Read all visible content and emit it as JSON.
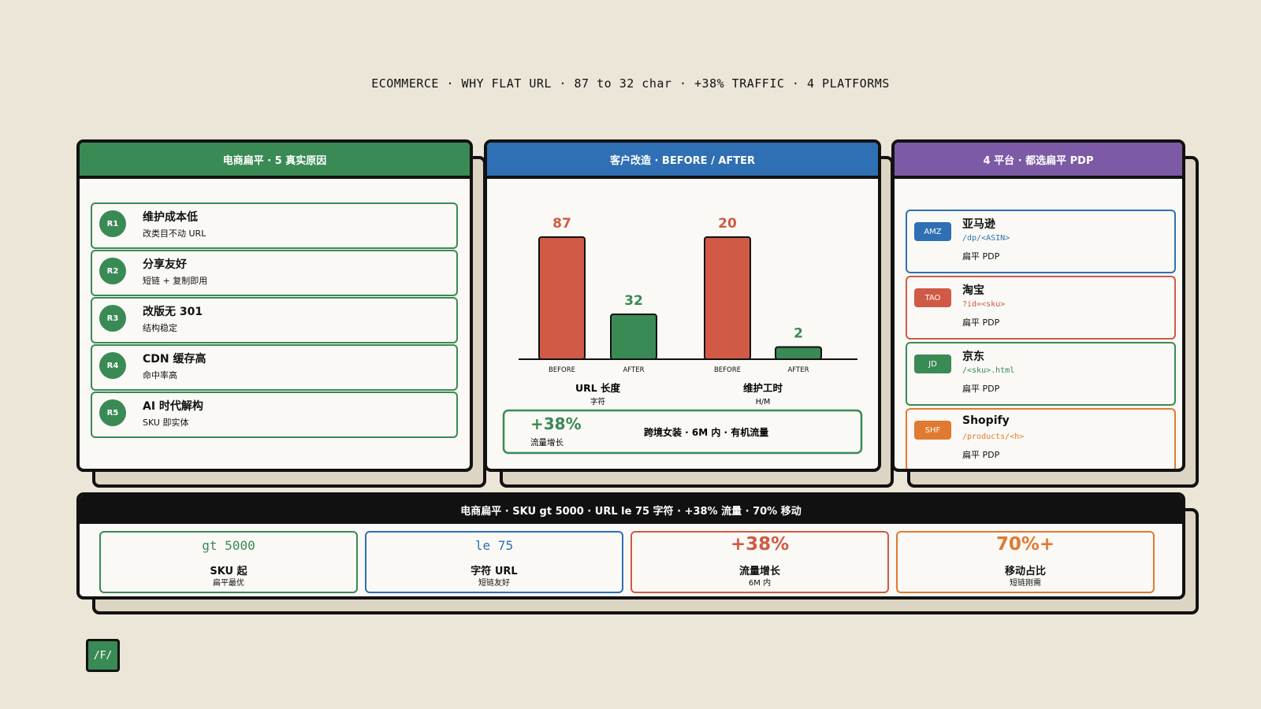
{
  "header": {
    "title": "ECOMMERCE · WHY FLAT URL · 87 to 32 char · +38% TRAFFIC · 4 PLATFORMS"
  },
  "reasons": {
    "title": "电商扁平 · 5 真实原因",
    "items": [
      {
        "badge": "R1",
        "title": "维护成本低",
        "desc": "改类目不动 URL"
      },
      {
        "badge": "R2",
        "title": "分享友好",
        "desc": "短链 + 复制即用"
      },
      {
        "badge": "R3",
        "title": "改版无 301",
        "desc": "结构稳定"
      },
      {
        "badge": "R4",
        "title": "CDN 缓存高",
        "desc": "命中率高"
      },
      {
        "badge": "R5",
        "title": "AI 时代解构",
        "desc": "SKU 即实体"
      }
    ]
  },
  "case": {
    "title": "客户改造 · BEFORE / AFTER",
    "chart": {
      "type": "bar",
      "groups": [
        {
          "label": "URL 长度",
          "unit": "字符",
          "bars": [
            {
              "name": "BEFORE",
              "value": 87,
              "color": "#d05a45"
            },
            {
              "name": "AFTER",
              "value": 32,
              "color": "#3a8a55"
            }
          ]
        },
        {
          "label": "维护工时",
          "unit": "H/M",
          "bars": [
            {
              "name": "BEFORE",
              "value": 20,
              "color": "#d05a45"
            },
            {
              "name": "AFTER",
              "value": 2,
              "color": "#3a8a55"
            }
          ]
        }
      ]
    },
    "callout": {
      "value": "+38%",
      "label": "流量增长",
      "desc": "跨境女装 · 6M 内 · 有机流量"
    }
  },
  "platforms": {
    "title": "4 平台 · 都选扁平 PDP",
    "items": [
      {
        "badge": "AMZ",
        "name": "亚马逊",
        "path": "/dp/<ASIN>",
        "note": "扁平 PDP",
        "color": "#2f6fb3"
      },
      {
        "badge": "TAO",
        "name": "淘宝",
        "path": "?id=<sku>",
        "note": "扁平 PDP",
        "color": "#d05a45"
      },
      {
        "badge": "JD",
        "name": "京东",
        "path": "/<sku>.html",
        "note": "扁平 PDP",
        "color": "#3a8a55"
      },
      {
        "badge": "SHF",
        "name": "Shopify",
        "path": "/products/<h>",
        "note": "扁平 PDP",
        "color": "#e07a30"
      }
    ]
  },
  "summary": {
    "title": "电商扁平 · SKU gt 5000 · URL le 75 字符 · +38% 流量 · 70% 移动",
    "items": [
      {
        "value": "gt 5000",
        "label": "SKU 起",
        "note": "扁平最优",
        "color": "#3a8a55"
      },
      {
        "value": "le 75",
        "label": "字符 URL",
        "note": "短链友好",
        "color": "#2f6fb3"
      },
      {
        "value": "+38%",
        "label": "流量增长",
        "note": "6M 内",
        "color": "#d05a45"
      },
      {
        "value": "70%+",
        "label": "移动占比",
        "note": "短链刚需",
        "color": "#e07a30"
      }
    ]
  },
  "footer": {
    "badge": "/F/"
  }
}
